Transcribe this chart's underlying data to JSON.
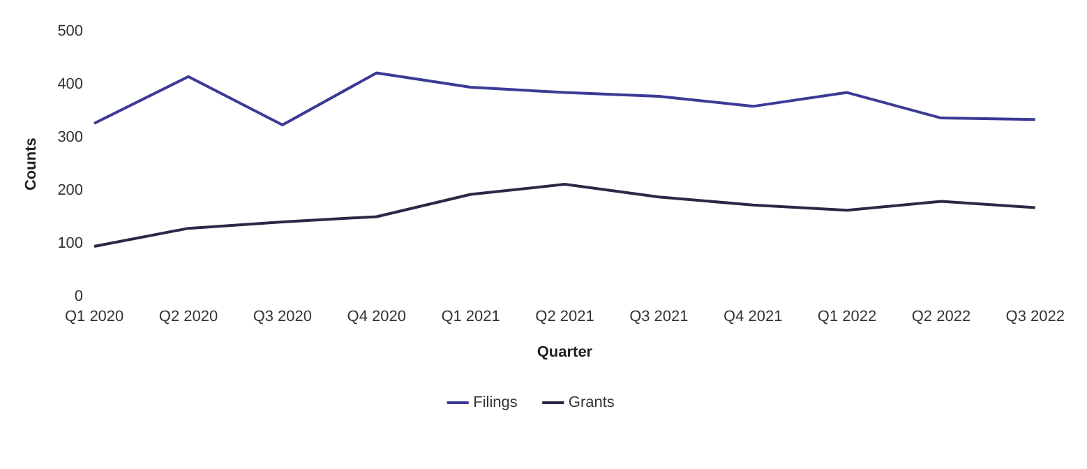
{
  "chart_data": {
    "type": "line",
    "xlabel": "Quarter",
    "ylabel": "Counts",
    "categories": [
      "Q1 2020",
      "Q2 2020",
      "Q3 2020",
      "Q4 2020",
      "Q1 2021",
      "Q2 2021",
      "Q3 2021",
      "Q4 2021",
      "Q1 2022",
      "Q2 2022",
      "Q3 2022"
    ],
    "series": [
      {
        "name": "Filings",
        "color": "#3b3b96",
        "values": [
          327,
          415,
          324,
          422,
          395,
          385,
          378,
          359,
          385,
          337,
          334
        ]
      },
      {
        "name": "Grants",
        "color": "#2a2946",
        "values": [
          95,
          129,
          141,
          151,
          193,
          212,
          188,
          173,
          163,
          180,
          168
        ]
      }
    ],
    "ylim": [
      0,
      500
    ],
    "yticks": [
      0,
      100,
      200,
      300,
      400,
      500
    ],
    "grid": false,
    "legend": "bottom",
    "marker": "none",
    "line_style": "solid"
  }
}
